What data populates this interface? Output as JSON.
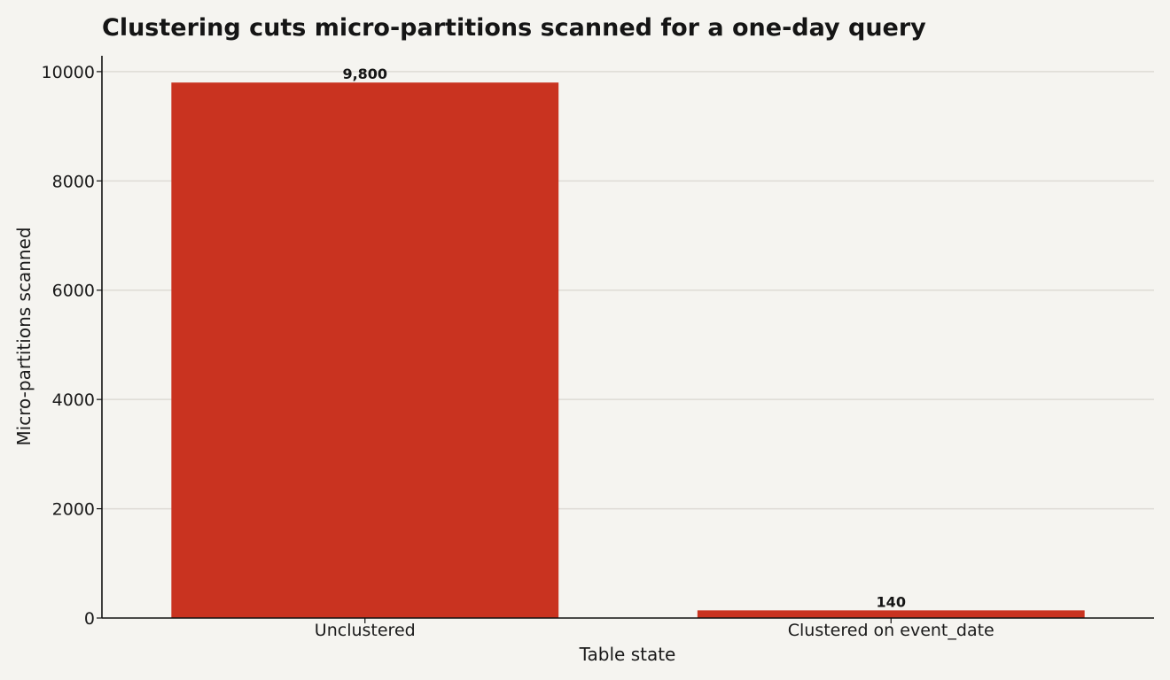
{
  "chart_data": {
    "type": "bar",
    "title": "Clustering cuts micro-partitions scanned for a one-day query",
    "xlabel": "Table state",
    "ylabel": "Micro-partitions scanned",
    "categories": [
      "Unclustered",
      "Clustered on event_date"
    ],
    "values": [
      9800,
      140
    ],
    "data_labels": [
      "9,800",
      "140"
    ],
    "yticks": [
      0,
      2000,
      4000,
      6000,
      8000,
      10000
    ],
    "ytick_labels": [
      "0",
      "2000",
      "4000",
      "6000",
      "8000",
      "10000"
    ],
    "ylim": [
      0,
      10290
    ],
    "grid": true,
    "legend": "none",
    "colors": {
      "bar": "#c93320",
      "background": "#f5f4f0",
      "grid": "#dedbd5",
      "axis": "#111111",
      "text": "#151515"
    }
  }
}
